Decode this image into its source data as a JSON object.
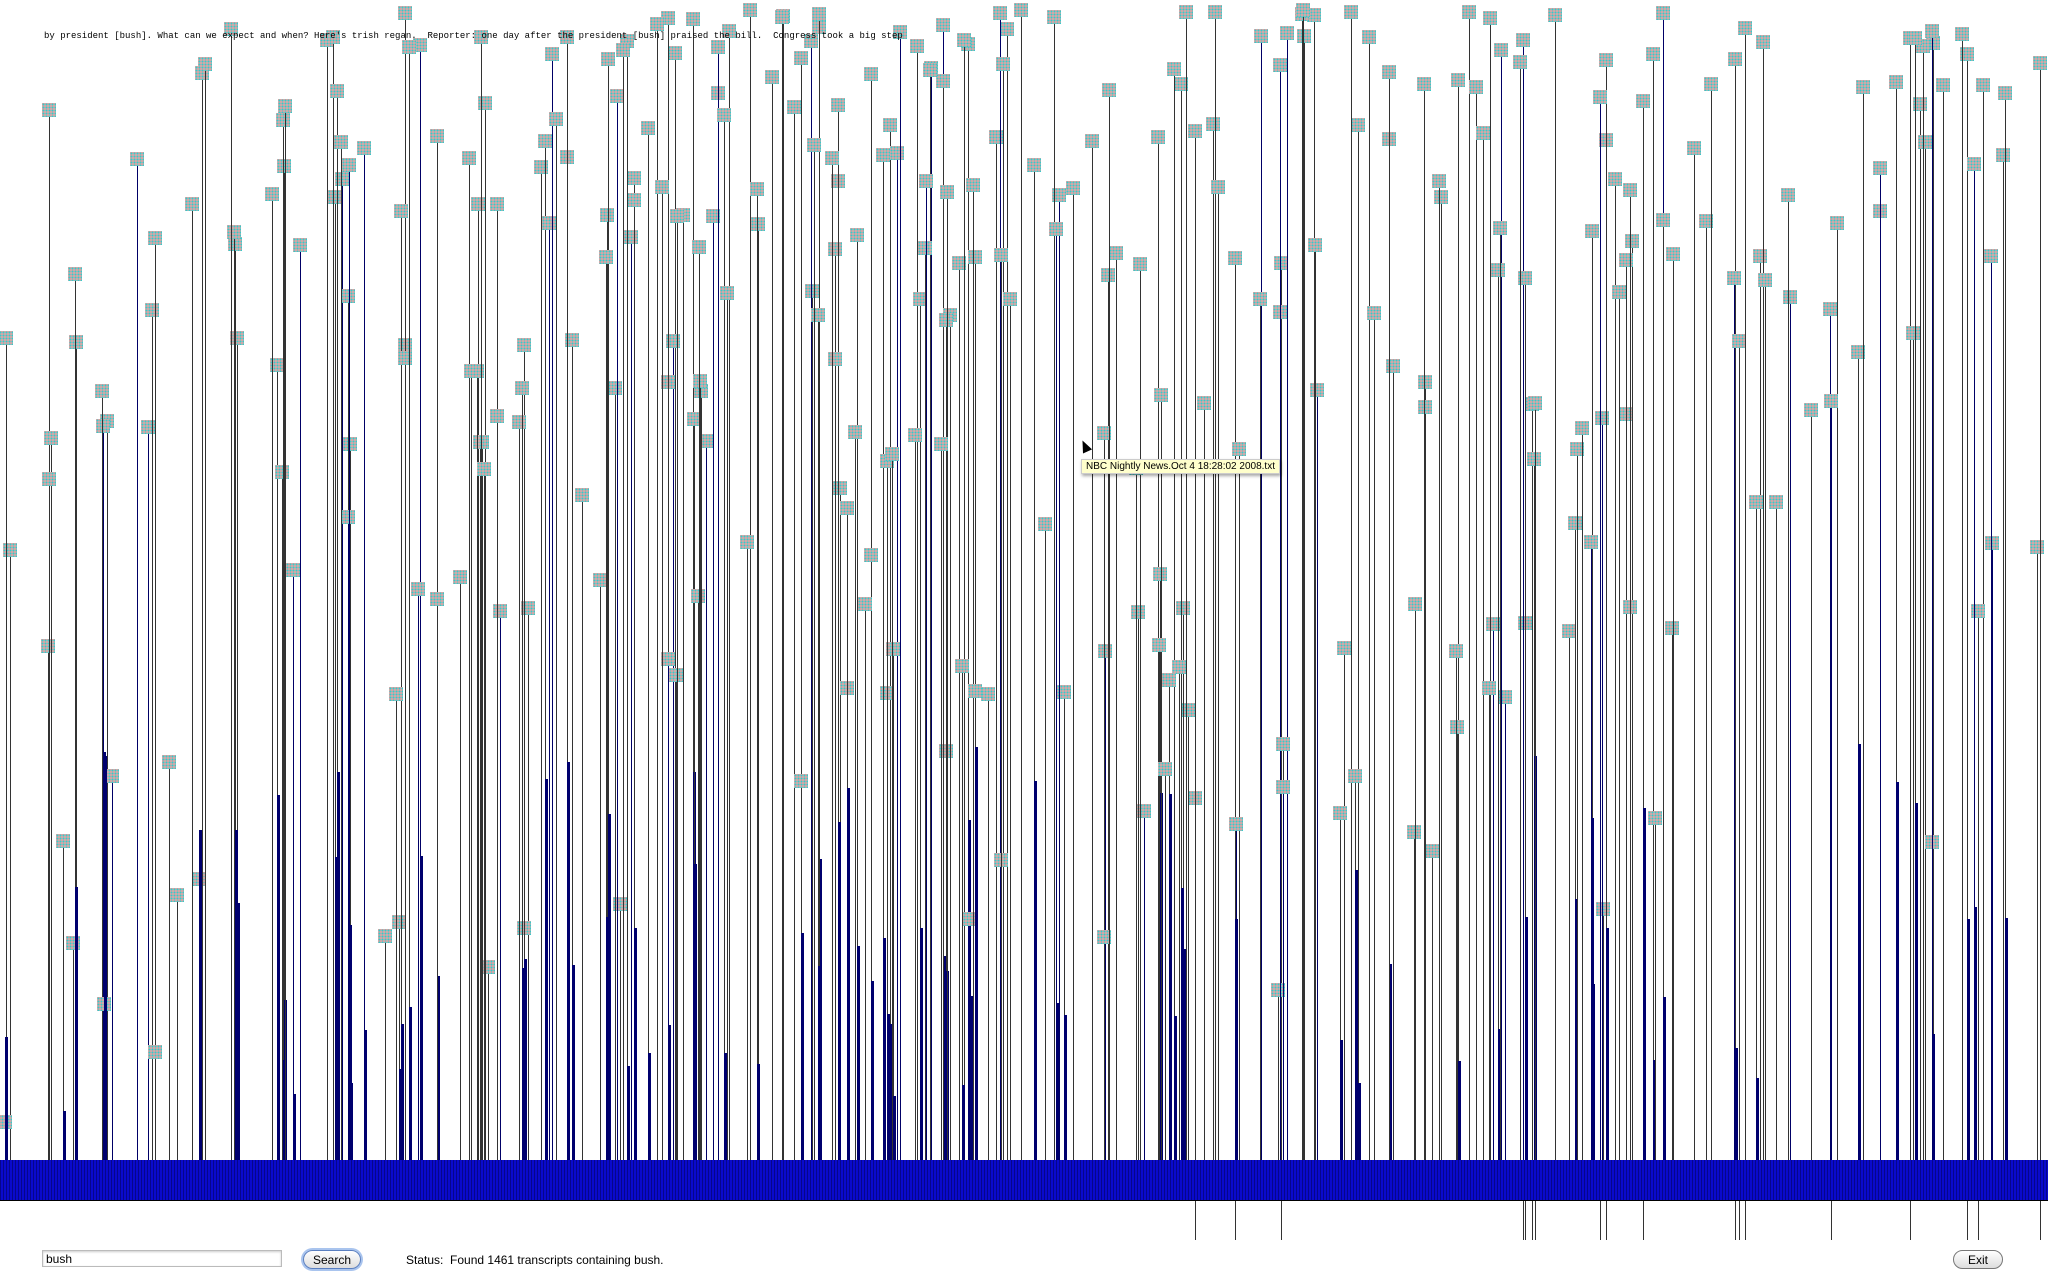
{
  "snippet": "by president [bush]. What can we expect and when? Here's trish regan.  Reporter: one day after the president [bush] praised the bill.  Congress took a big step",
  "tooltip": "NBC Nightly News.Oct  4 18:28:02 2008.txt",
  "search": {
    "value": "bush",
    "button": "Search"
  },
  "status": {
    "label": "Status:",
    "text": "Found 1461 transcripts containing bush."
  },
  "exit_label": "Exit",
  "colors": {
    "band": "#0a0acc",
    "marker_pink": "#f4a0a0",
    "marker_cyan": "#33cccc"
  }
}
